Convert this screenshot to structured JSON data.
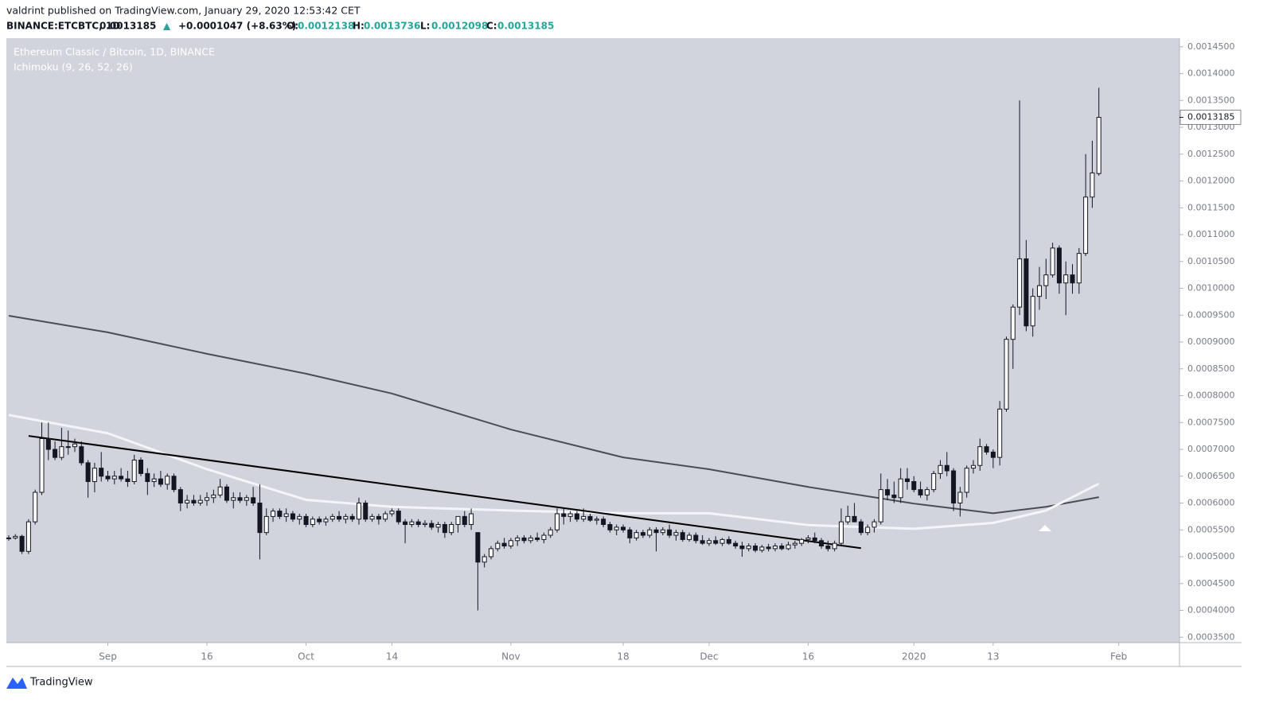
{
  "header": {
    "author_line": "valdrint published on TradingView.com, January 29, 2020 12:53:42 CET",
    "symbol": "BINANCE:ETCBTC, 1D",
    "arrow": "▲",
    "change": "+0.0001047 (+8.63%)",
    "ohlc_labels": [
      "O:",
      "H:",
      "L:",
      "C:"
    ]
  },
  "footer": {
    "brand": "TradingView"
  },
  "chart_data": {
    "type": "candlestick",
    "title": "Ethereum Classic / Bitcoin, 1D, BINANCE",
    "subtitle": "Ichimoku (9, 26, 52, 26)",
    "up_color": "#ffffff",
    "down_color": "#131722",
    "grid": false,
    "candles": [
      [
        0.000535,
        0.00054,
        0.00053,
        0.000535
      ],
      [
        0.000535,
        0.000542,
        0.000532,
        0.000538
      ],
      [
        0.000538,
        0.000541,
        0.000505,
        0.00051
      ],
      [
        0.00051,
        0.00057,
        0.000505,
        0.000565
      ],
      [
        0.000565,
        0.000625,
        0.00056,
        0.00062
      ],
      [
        0.00062,
        0.00075,
        0.000615,
        0.00072
      ],
      [
        0.00072,
        0.00075,
        0.00068,
        0.0007
      ],
      [
        0.0007,
        0.000715,
        0.00068,
        0.000685
      ],
      [
        0.000685,
        0.00074,
        0.00068,
        0.000705
      ],
      [
        0.000705,
        0.000735,
        0.00069,
        0.000705
      ],
      [
        0.000705,
        0.00072,
        0.000695,
        0.00071
      ],
      [
        0.000705,
        0.000715,
        0.00067,
        0.000675
      ],
      [
        0.000675,
        0.00068,
        0.00061,
        0.00064
      ],
      [
        0.00064,
        0.000675,
        0.00062,
        0.000665
      ],
      [
        0.000665,
        0.000695,
        0.00064,
        0.00065
      ],
      [
        0.00065,
        0.00066,
        0.00064,
        0.000645
      ],
      [
        0.000645,
        0.00066,
        0.000635,
        0.00065
      ],
      [
        0.00065,
        0.000665,
        0.00064,
        0.000645
      ],
      [
        0.000645,
        0.00066,
        0.00063,
        0.00064
      ],
      [
        0.00064,
        0.00069,
        0.000635,
        0.00068
      ],
      [
        0.00068,
        0.000685,
        0.00065,
        0.000655
      ],
      [
        0.000655,
        0.000665,
        0.000615,
        0.00064
      ],
      [
        0.00064,
        0.000655,
        0.00063,
        0.000645
      ],
      [
        0.000645,
        0.00066,
        0.00063,
        0.000635
      ],
      [
        0.000635,
        0.000655,
        0.000625,
        0.00065
      ],
      [
        0.00065,
        0.000655,
        0.00062,
        0.000625
      ],
      [
        0.000625,
        0.00063,
        0.000585,
        0.0006
      ],
      [
        0.0006,
        0.000615,
        0.00059,
        0.000605
      ],
      [
        0.000605,
        0.000615,
        0.000595,
        0.0006
      ],
      [
        0.0006,
        0.000615,
        0.000595,
        0.000605
      ],
      [
        0.000605,
        0.00062,
        0.000595,
        0.00061
      ],
      [
        0.00061,
        0.000625,
        0.0006,
        0.000615
      ],
      [
        0.000615,
        0.000645,
        0.00061,
        0.00063
      ],
      [
        0.00063,
        0.000635,
        0.0006,
        0.000605
      ],
      [
        0.000605,
        0.00062,
        0.00059,
        0.00061
      ],
      [
        0.00061,
        0.00062,
        0.0006,
        0.000605
      ],
      [
        0.000605,
        0.000615,
        0.000595,
        0.00061
      ],
      [
        0.00061,
        0.00063,
        0.000595,
        0.0006
      ],
      [
        0.0006,
        0.000635,
        0.000495,
        0.000545
      ],
      [
        0.000545,
        0.00059,
        0.00054,
        0.000575
      ],
      [
        0.000575,
        0.00059,
        0.000565,
        0.000585
      ],
      [
        0.000585,
        0.00059,
        0.00057,
        0.000575
      ],
      [
        0.000575,
        0.00059,
        0.000565,
        0.00058
      ],
      [
        0.00058,
        0.000585,
        0.000565,
        0.00057
      ],
      [
        0.00057,
        0.00058,
        0.00056,
        0.000575
      ],
      [
        0.000575,
        0.00058,
        0.000555,
        0.00056
      ],
      [
        0.00056,
        0.000575,
        0.000555,
        0.00057
      ],
      [
        0.00057,
        0.000575,
        0.00056,
        0.000565
      ],
      [
        0.000565,
        0.000575,
        0.000558,
        0.00057
      ],
      [
        0.00057,
        0.00058,
        0.000565,
        0.000575
      ],
      [
        0.000575,
        0.000585,
        0.000565,
        0.00057
      ],
      [
        0.00057,
        0.00058,
        0.000562,
        0.000575
      ],
      [
        0.000575,
        0.00058,
        0.000565,
        0.00057
      ],
      [
        0.00057,
        0.00061,
        0.00056,
        0.0006
      ],
      [
        0.0006,
        0.000605,
        0.000565,
        0.00057
      ],
      [
        0.00057,
        0.00058,
        0.000565,
        0.000575
      ],
      [
        0.000575,
        0.00058,
        0.00056,
        0.00057
      ],
      [
        0.00057,
        0.000585,
        0.000565,
        0.00058
      ],
      [
        0.00058,
        0.00059,
        0.000575,
        0.000585
      ],
      [
        0.000585,
        0.00059,
        0.00056,
        0.000565
      ],
      [
        0.000565,
        0.00057,
        0.000525,
        0.00056
      ],
      [
        0.00056,
        0.00057,
        0.000555,
        0.000565
      ],
      [
        0.000565,
        0.00057,
        0.000555,
        0.00056
      ],
      [
        0.00056,
        0.000568,
        0.000555,
        0.000562
      ],
      [
        0.000562,
        0.000568,
        0.00055,
        0.000555
      ],
      [
        0.000555,
        0.000565,
        0.000545,
        0.00056
      ],
      [
        0.00056,
        0.000565,
        0.000535,
        0.000545
      ],
      [
        0.000545,
        0.000565,
        0.00054,
        0.00056
      ],
      [
        0.00056,
        0.000575,
        0.000545,
        0.000575
      ],
      [
        0.000575,
        0.000585,
        0.000555,
        0.00056
      ],
      [
        0.00056,
        0.00059,
        0.00055,
        0.00058
      ],
      [
        0.000545,
        0.000545,
        0.0004,
        0.00049
      ],
      [
        0.00049,
        0.000505,
        0.00048,
        0.0005
      ],
      [
        0.0005,
        0.00052,
        0.000495,
        0.000515
      ],
      [
        0.000515,
        0.00053,
        0.00051,
        0.000525
      ],
      [
        0.000525,
        0.000535,
        0.000515,
        0.00052
      ],
      [
        0.00052,
        0.000535,
        0.000515,
        0.00053
      ],
      [
        0.00053,
        0.00054,
        0.00052,
        0.000535
      ],
      [
        0.000535,
        0.00054,
        0.000525,
        0.00053
      ],
      [
        0.00053,
        0.00054,
        0.000525,
        0.000535
      ],
      [
        0.000535,
        0.000545,
        0.000528,
        0.000532
      ],
      [
        0.000532,
        0.000545,
        0.000525,
        0.00054
      ],
      [
        0.00054,
        0.000555,
        0.000535,
        0.00055
      ],
      [
        0.00055,
        0.00059,
        0.000545,
        0.00058
      ],
      [
        0.00058,
        0.00059,
        0.00056,
        0.000575
      ],
      [
        0.000575,
        0.000585,
        0.000565,
        0.00058
      ],
      [
        0.00058,
        0.000585,
        0.000565,
        0.00057
      ],
      [
        0.00057,
        0.00059,
        0.000565,
        0.000575
      ],
      [
        0.000575,
        0.00058,
        0.000565,
        0.000568
      ],
      [
        0.000568,
        0.000575,
        0.00056,
        0.00057
      ],
      [
        0.00057,
        0.000575,
        0.000555,
        0.00056
      ],
      [
        0.00056,
        0.000565,
        0.000545,
        0.00055
      ],
      [
        0.00055,
        0.00056,
        0.00054,
        0.000555
      ],
      [
        0.000555,
        0.00056,
        0.000545,
        0.00055
      ],
      [
        0.00055,
        0.000555,
        0.000525,
        0.000535
      ],
      [
        0.000535,
        0.00055,
        0.00053,
        0.000545
      ],
      [
        0.000545,
        0.00055,
        0.000535,
        0.00054
      ],
      [
        0.00054,
        0.000555,
        0.000535,
        0.00055
      ],
      [
        0.00055,
        0.000555,
        0.00051,
        0.000545
      ],
      [
        0.000545,
        0.000555,
        0.00054,
        0.00055
      ],
      [
        0.00055,
        0.00056,
        0.000535,
        0.00054
      ],
      [
        0.00054,
        0.00055,
        0.00053,
        0.000545
      ],
      [
        0.000545,
        0.00055,
        0.000528,
        0.000532
      ],
      [
        0.000532,
        0.000545,
        0.000528,
        0.00054
      ],
      [
        0.00054,
        0.000545,
        0.000525,
        0.00053
      ],
      [
        0.00053,
        0.00054,
        0.000522,
        0.000525
      ],
      [
        0.000525,
        0.000535,
        0.00052,
        0.00053
      ],
      [
        0.00053,
        0.000538,
        0.000522,
        0.000525
      ],
      [
        0.000525,
        0.000535,
        0.00052,
        0.000532
      ],
      [
        0.000532,
        0.000538,
        0.000522,
        0.000525
      ],
      [
        0.000525,
        0.00053,
        0.000515,
        0.00052
      ],
      [
        0.00052,
        0.000528,
        0.0005,
        0.000515
      ],
      [
        0.000515,
        0.000525,
        0.00051,
        0.00052
      ],
      [
        0.00052,
        0.000525,
        0.000508,
        0.000512
      ],
      [
        0.000512,
        0.000522,
        0.000508,
        0.000518
      ],
      [
        0.000518,
        0.000524,
        0.00051,
        0.000515
      ],
      [
        0.000515,
        0.000525,
        0.00051,
        0.00052
      ],
      [
        0.00052,
        0.000525,
        0.000512,
        0.000515
      ],
      [
        0.000515,
        0.000528,
        0.000512,
        0.000522
      ],
      [
        0.000522,
        0.00053,
        0.000515,
        0.000525
      ],
      [
        0.000525,
        0.000535,
        0.00052,
        0.000532
      ],
      [
        0.000532,
        0.00054,
        0.000525,
        0.000535
      ],
      [
        0.000535,
        0.000545,
        0.000525,
        0.00053
      ],
      [
        0.00053,
        0.000535,
        0.000515,
        0.00052
      ],
      [
        0.00052,
        0.00053,
        0.00051,
        0.000515
      ],
      [
        0.000515,
        0.00053,
        0.00051,
        0.000525
      ],
      [
        0.000525,
        0.00059,
        0.00052,
        0.000565
      ],
      [
        0.000565,
        0.000595,
        0.00056,
        0.000575
      ],
      [
        0.000575,
        0.0006,
        0.000565,
        0.000565
      ],
      [
        0.000565,
        0.00057,
        0.00054,
        0.000545
      ],
      [
        0.000545,
        0.00056,
        0.00054,
        0.000555
      ],
      [
        0.000555,
        0.00057,
        0.000545,
        0.000565
      ],
      [
        0.000565,
        0.000655,
        0.00056,
        0.000625
      ],
      [
        0.000625,
        0.000645,
        0.000605,
        0.000615
      ],
      [
        0.000615,
        0.00064,
        0.0006,
        0.00061
      ],
      [
        0.00061,
        0.000665,
        0.0006,
        0.000645
      ],
      [
        0.000645,
        0.000665,
        0.000625,
        0.00064
      ],
      [
        0.00064,
        0.00065,
        0.00062,
        0.000625
      ],
      [
        0.000625,
        0.00064,
        0.00061,
        0.000615
      ],
      [
        0.000615,
        0.00063,
        0.000605,
        0.000625
      ],
      [
        0.000625,
        0.00066,
        0.00062,
        0.000655
      ],
      [
        0.000655,
        0.00068,
        0.000645,
        0.00067
      ],
      [
        0.00067,
        0.000695,
        0.00065,
        0.00066
      ],
      [
        0.00066,
        0.000665,
        0.000585,
        0.0006
      ],
      [
        0.0006,
        0.00063,
        0.000575,
        0.00062
      ],
      [
        0.00062,
        0.00067,
        0.00061,
        0.000665
      ],
      [
        0.000665,
        0.00068,
        0.000655,
        0.00067
      ],
      [
        0.00067,
        0.00072,
        0.00066,
        0.000705
      ],
      [
        0.000705,
        0.00071,
        0.00069,
        0.000695
      ],
      [
        0.000695,
        0.0007,
        0.000665,
        0.000685
      ],
      [
        0.000685,
        0.00079,
        0.00067,
        0.000775
      ],
      [
        0.000775,
        0.00091,
        0.00077,
        0.000905
      ],
      [
        0.000905,
        0.00097,
        0.00085,
        0.000965
      ],
      [
        0.000965,
        0.00135,
        0.00095,
        0.001055
      ],
      [
        0.001055,
        0.00109,
        0.00092,
        0.00093
      ],
      [
        0.00093,
        0.001,
        0.00091,
        0.000985
      ],
      [
        0.000985,
        0.00104,
        0.00096,
        0.001005
      ],
      [
        0.001005,
        0.001055,
        0.00098,
        0.001025
      ],
      [
        0.001025,
        0.001085,
        0.00102,
        0.001075
      ],
      [
        0.001075,
        0.00108,
        0.00099,
        0.00101
      ],
      [
        0.00101,
        0.00105,
        0.00095,
        0.001025
      ],
      [
        0.001025,
        0.001045,
        0.00099,
        0.00101
      ],
      [
        0.00101,
        0.001075,
        0.00099,
        0.001065
      ],
      [
        0.001065,
        0.00125,
        0.00106,
        0.00117
      ],
      [
        0.00117,
        0.001275,
        0.00115,
        0.001215
      ],
      [
        0.0012138,
        0.0013736,
        0.0012098,
        0.0013185
      ]
    ],
    "xlim": [
      -0.36,
      177.2
    ],
    "xticks": [
      {
        "value": 15,
        "label": "Sep"
      },
      {
        "value": 30,
        "label": "16"
      },
      {
        "value": 45,
        "label": "Oct"
      },
      {
        "value": 58,
        "label": "14"
      },
      {
        "value": 76,
        "label": "Nov"
      },
      {
        "value": 93,
        "label": "18"
      },
      {
        "value": 106,
        "label": "Dec"
      },
      {
        "value": 121,
        "label": "16"
      },
      {
        "value": 137,
        "label": "2020"
      },
      {
        "value": 149,
        "label": "13"
      },
      {
        "value": 168,
        "label": "Feb"
      }
    ],
    "ylim": [
      0.00034,
      0.001466
    ],
    "yticks": [
      {
        "value": 0.00035,
        "label": "0.0003500"
      },
      {
        "value": 0.0004,
        "label": "0.0004000"
      },
      {
        "value": 0.00045,
        "label": "0.0004500"
      },
      {
        "value": 0.0005,
        "label": "0.0005000"
      },
      {
        "value": 0.00055,
        "label": "0.0005500"
      },
      {
        "value": 0.0006,
        "label": "0.0006000"
      },
      {
        "value": 0.00065,
        "label": "0.0006500"
      },
      {
        "value": 0.0007,
        "label": "0.0007000"
      },
      {
        "value": 0.00075,
        "label": "0.0007500"
      },
      {
        "value": 0.0008,
        "label": "0.0008000"
      },
      {
        "value": 0.00085,
        "label": "0.0008500"
      },
      {
        "value": 0.0009,
        "label": "0.0009000"
      },
      {
        "value": 0.00095,
        "label": "0.0009500"
      },
      {
        "value": 0.001,
        "label": "0.0010000"
      },
      {
        "value": 0.00105,
        "label": "0.0010500"
      },
      {
        "value": 0.0011,
        "label": "0.0011000"
      },
      {
        "value": 0.00115,
        "label": "0.0011500"
      },
      {
        "value": 0.0012,
        "label": "0.0012000"
      },
      {
        "value": 0.00125,
        "label": "0.0012500"
      },
      {
        "value": 0.0013,
        "label": "0.0013000"
      },
      {
        "value": 0.00135,
        "label": "0.0013500"
      },
      {
        "value": 0.0014,
        "label": "0.0014000"
      },
      {
        "value": 0.00145,
        "label": "0.0014500"
      }
    ],
    "lines": [
      {
        "color": "#4a4d55",
        "width": 2,
        "x": [
          0,
          15,
          30,
          45,
          58,
          76,
          93,
          106,
          121,
          137,
          149,
          157,
          165
        ],
        "values": [
          0.000949,
          0.000918,
          0.000878,
          0.000841,
          0.000804,
          0.000737,
          0.000685,
          0.000663,
          0.00063,
          0.000599,
          0.000581,
          0.000593,
          0.000611
        ]
      },
      {
        "color": "#f4f5f8",
        "width": 3,
        "x": [
          0,
          15,
          30,
          45,
          58,
          76,
          93,
          106,
          121,
          137,
          149,
          157,
          165
        ],
        "values": [
          0.000764,
          0.00073,
          0.000663,
          0.000606,
          0.000593,
          0.000586,
          0.000581,
          0.000581,
          0.000559,
          0.000552,
          0.000563,
          0.000586,
          0.000636
        ]
      },
      {
        "color": "#000000",
        "width": 2,
        "x": [
          3,
          129
        ],
        "values": [
          0.000725,
          0.000516
        ]
      }
    ]
  }
}
